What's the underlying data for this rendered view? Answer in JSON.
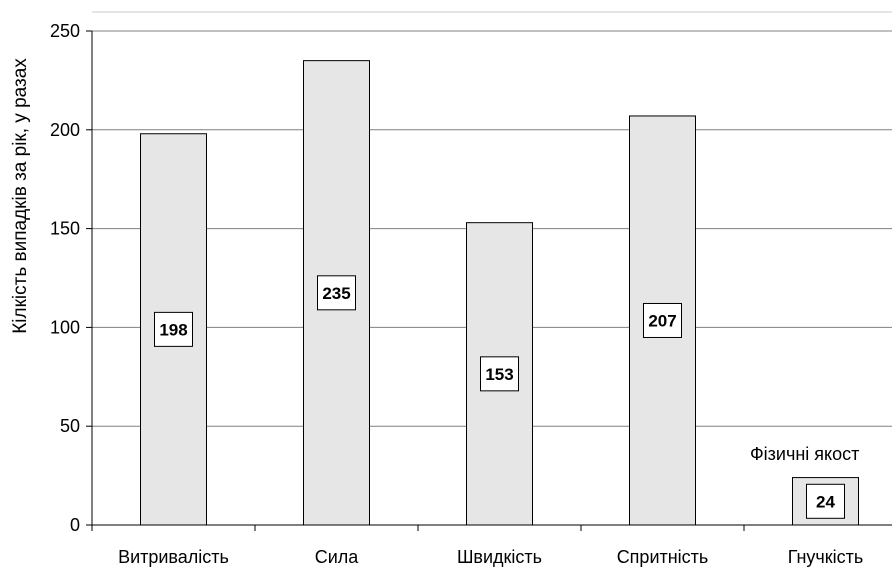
{
  "chart_data": {
    "type": "bar",
    "categories": [
      "Витривалість",
      "Сила",
      "Швидкість",
      "Спритність",
      "Гнучкість"
    ],
    "values": [
      198,
      235,
      153,
      207,
      24
    ],
    "ylabel": "Кілкість випадків за рік, у разах",
    "xlabel": "",
    "ylim": [
      0,
      250
    ],
    "yticks": [
      0,
      50,
      100,
      150,
      200,
      250
    ],
    "grid": true,
    "annotation": "Фізичні якост",
    "colors": {
      "bar_fill": "#e6e6e6",
      "bar_stroke": "#000000",
      "grid": "#808080"
    }
  }
}
